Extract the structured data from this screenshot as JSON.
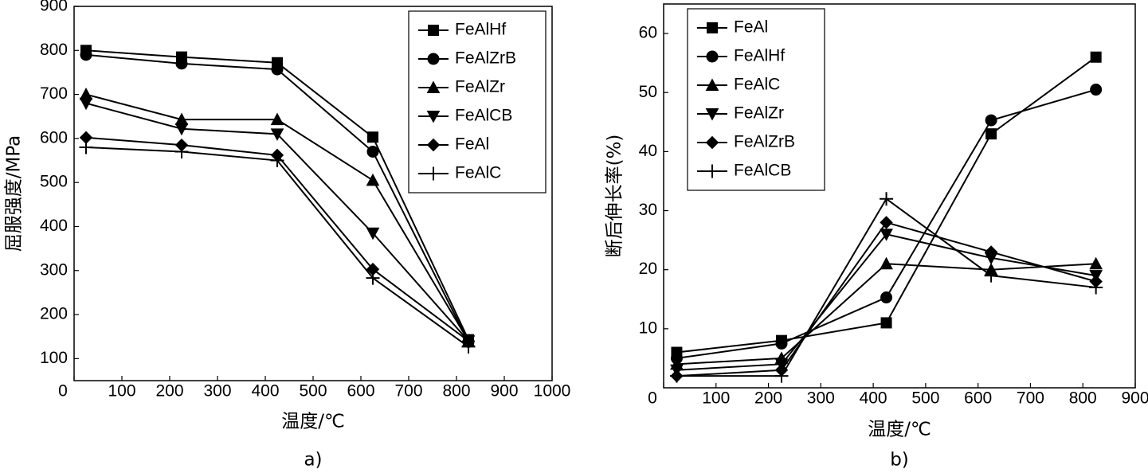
{
  "chart_data": [
    {
      "type": "line",
      "caption": "a)",
      "ylabel": "屈服强度/MPa",
      "xlabel": "温度/℃",
      "x": [
        25,
        225,
        425,
        625,
        825
      ],
      "xlim": [
        0,
        1000
      ],
      "xticks": [
        0,
        100,
        200,
        300,
        400,
        500,
        600,
        700,
        800,
        900,
        1000
      ],
      "ylim": [
        50,
        900
      ],
      "yticks": [
        100,
        200,
        300,
        400,
        500,
        600,
        700,
        800,
        900
      ],
      "legend": "upper right",
      "series": [
        {
          "name": "FeAlHf",
          "color": "#000000",
          "marker": "square",
          "values": [
            800,
            785,
            772,
            603,
            143
          ]
        },
        {
          "name": "FeAlZrB",
          "color": "#000000",
          "marker": "circle",
          "values": [
            790,
            770,
            757,
            570,
            138
          ]
        },
        {
          "name": "FeAlZr",
          "color": "#000000",
          "marker": "triangle-up",
          "values": [
            700,
            643,
            643,
            505,
            140
          ]
        },
        {
          "name": "FeAlCB",
          "color": "#000000",
          "marker": "triangle-down",
          "values": [
            680,
            622,
            610,
            385,
            140
          ]
        },
        {
          "name": "FeAl",
          "color": "#000000",
          "marker": "diamond",
          "values": [
            602,
            585,
            562,
            303,
            140
          ]
        },
        {
          "name": "FeAlC",
          "color": "#000000",
          "marker": "plus",
          "values": [
            580,
            570,
            550,
            283,
            127
          ]
        }
      ]
    },
    {
      "type": "line",
      "caption": "b)",
      "ylabel": "断后伸长率(%)",
      "xlabel": "温度/℃",
      "x": [
        25,
        225,
        425,
        625,
        825
      ],
      "xlim": [
        0,
        900
      ],
      "xticks": [
        0,
        100,
        200,
        300,
        400,
        500,
        600,
        700,
        800,
        900
      ],
      "ylim": [
        0,
        65
      ],
      "yticks": [
        10,
        20,
        30,
        40,
        50,
        60
      ],
      "legend": "upper left",
      "series": [
        {
          "name": "FeAl",
          "color": "#000000",
          "marker": "square",
          "values": [
            6,
            8,
            11,
            43,
            56
          ]
        },
        {
          "name": "FeAlHf",
          "color": "#000000",
          "marker": "circle",
          "values": [
            5,
            7.5,
            15.3,
            45.3,
            50.5
          ]
        },
        {
          "name": "FeAlC",
          "color": "#000000",
          "marker": "triangle-up",
          "values": [
            4,
            5,
            21,
            20,
            21
          ]
        },
        {
          "name": "FeAlZr",
          "color": "#000000",
          "marker": "triangle-down",
          "values": [
            3,
            4,
            26,
            22,
            19
          ]
        },
        {
          "name": "FeAlZrB",
          "color": "#000000",
          "marker": "diamond",
          "values": [
            2,
            3,
            28,
            23,
            18
          ]
        },
        {
          "name": "FeAlCB",
          "color": "#000000",
          "marker": "plus",
          "values": [
            2,
            2,
            32,
            19,
            17
          ]
        }
      ]
    }
  ]
}
